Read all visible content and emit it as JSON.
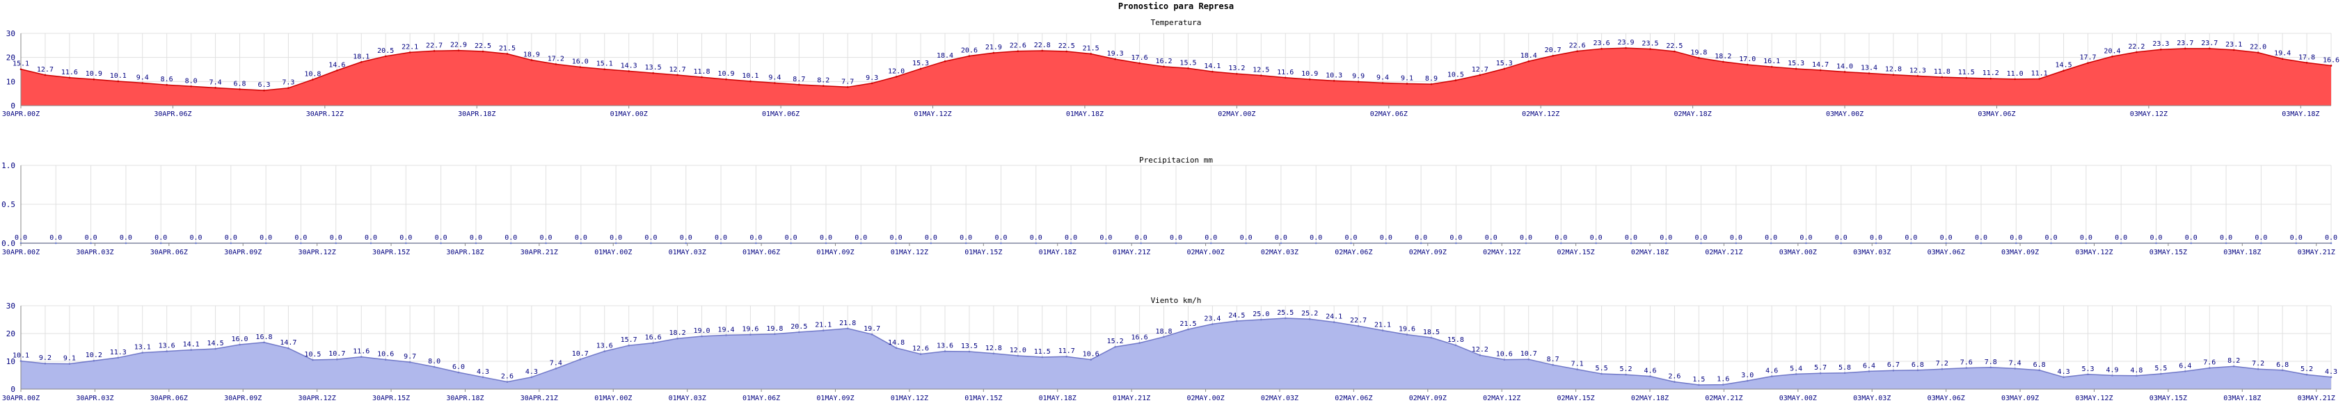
{
  "page_title": "Pronostico para Represa",
  "colors": {
    "temp_fill": "#ff5050",
    "temp_line": "#cc0000",
    "wind_fill": "#b0b8ec",
    "wind_line": "#7078c8",
    "precip_line": "#7080d0",
    "grid": "#e0e0e0",
    "axis": "#888888",
    "value_label": "#000080",
    "axis_label": "#000080"
  },
  "chart_data": [
    {
      "type": "area",
      "title": "Temperatura",
      "ylim": [
        0,
        30
      ],
      "yticks": [
        0,
        10,
        20,
        30
      ],
      "grid": true,
      "x_ticks": [
        "30APR.00Z",
        "30APR.06Z",
        "30APR.12Z",
        "30APR.18Z",
        "01MAY.00Z",
        "01MAY.06Z",
        "01MAY.12Z",
        "01MAY.18Z",
        "02MAY.00Z",
        "02MAY.06Z",
        "02MAY.12Z",
        "02MAY.18Z",
        "03MAY.00Z",
        "03MAY.06Z",
        "03MAY.12Z",
        "03MAY.18Z"
      ],
      "values": [
        15.1,
        12.7,
        11.6,
        10.9,
        10.1,
        9.4,
        8.6,
        8.0,
        7.4,
        6.8,
        6.3,
        7.3,
        10.8,
        14.6,
        18.1,
        20.5,
        22.1,
        22.7,
        22.9,
        22.5,
        21.5,
        18.9,
        17.2,
        16.0,
        15.1,
        14.3,
        13.5,
        12.7,
        11.8,
        10.9,
        10.1,
        9.4,
        8.7,
        8.2,
        7.7,
        9.3,
        12.0,
        15.3,
        18.4,
        20.6,
        21.9,
        22.6,
        22.8,
        22.5,
        21.5,
        19.3,
        17.6,
        16.2,
        15.5,
        14.1,
        13.2,
        12.5,
        11.6,
        10.9,
        10.3,
        9.9,
        9.4,
        9.1,
        8.9,
        10.5,
        12.7,
        15.3,
        18.4,
        20.7,
        22.6,
        23.6,
        23.9,
        23.5,
        22.5,
        19.8,
        18.2,
        17.0,
        16.1,
        15.3,
        14.7,
        14.0,
        13.4,
        12.8,
        12.3,
        11.8,
        11.5,
        11.2,
        11.0,
        11.1,
        14.5,
        17.7,
        20.4,
        22.2,
        23.3,
        23.7,
        23.7,
        23.1,
        22.0,
        19.4,
        17.8,
        16.6
      ]
    },
    {
      "type": "area",
      "title": "Precipitacion mm",
      "ylim": [
        0,
        1.0
      ],
      "yticks": [
        "0.0",
        "0.5",
        "1.0"
      ],
      "grid": true,
      "x_ticks": [
        "30APR.00Z",
        "30APR.03Z",
        "30APR.06Z",
        "30APR.09Z",
        "30APR.12Z",
        "30APR.15Z",
        "30APR.18Z",
        "30APR.21Z",
        "01MAY.00Z",
        "01MAY.03Z",
        "01MAY.06Z",
        "01MAY.09Z",
        "01MAY.12Z",
        "01MAY.15Z",
        "01MAY.18Z",
        "01MAY.21Z",
        "02MAY.00Z",
        "02MAY.03Z",
        "02MAY.06Z",
        "02MAY.09Z",
        "02MAY.12Z",
        "02MAY.15Z",
        "02MAY.18Z",
        "02MAY.21Z",
        "03MAY.00Z",
        "03MAY.03Z",
        "03MAY.06Z",
        "03MAY.09Z",
        "03MAY.12Z",
        "03MAY.15Z",
        "03MAY.18Z",
        "03MAY.21Z"
      ],
      "values": [
        0.0,
        0.0,
        0.0,
        0.0,
        0.0,
        0.0,
        0.0,
        0.0,
        0.0,
        0.0,
        0.0,
        0.0,
        0.0,
        0.0,
        0.0,
        0.0,
        0.0,
        0.0,
        0.0,
        0.0,
        0.0,
        0.0,
        0.0,
        0.0,
        0.0,
        0.0,
        0.0,
        0.0,
        0.0,
        0.0,
        0.0,
        0.0,
        0.0,
        0.0,
        0.0,
        0.0,
        0.0,
        0.0,
        0.0,
        0.0,
        0.0,
        0.0,
        0.0,
        0.0,
        0.0,
        0.0,
        0.0,
        0.0,
        0.0,
        0.0,
        0.0,
        0.0,
        0.0,
        0.0,
        0.0,
        0.0,
        0.0,
        0.0,
        0.0,
        0.0,
        0.0,
        0.0,
        0.0,
        0.0,
        0.0,
        0.0,
        0.0
      ]
    },
    {
      "type": "area",
      "title": "Viento km/h",
      "ylim": [
        0,
        30
      ],
      "yticks": [
        0,
        10,
        20,
        30
      ],
      "grid": true,
      "x_ticks": [
        "30APR.00Z",
        "30APR.03Z",
        "30APR.06Z",
        "30APR.09Z",
        "30APR.12Z",
        "30APR.15Z",
        "30APR.18Z",
        "30APR.21Z",
        "01MAY.00Z",
        "01MAY.03Z",
        "01MAY.06Z",
        "01MAY.09Z",
        "01MAY.12Z",
        "01MAY.15Z",
        "01MAY.18Z",
        "01MAY.21Z",
        "02MAY.00Z",
        "02MAY.03Z",
        "02MAY.06Z",
        "02MAY.09Z",
        "02MAY.12Z",
        "02MAY.15Z",
        "02MAY.18Z",
        "02MAY.21Z",
        "03MAY.00Z",
        "03MAY.03Z",
        "03MAY.06Z",
        "03MAY.09Z",
        "03MAY.12Z",
        "03MAY.15Z",
        "03MAY.18Z",
        "03MAY.21Z"
      ],
      "values": [
        10.1,
        9.2,
        9.1,
        10.2,
        11.3,
        13.1,
        13.6,
        14.1,
        14.5,
        16.0,
        16.8,
        14.7,
        10.5,
        10.7,
        11.6,
        10.6,
        9.7,
        8.0,
        6.0,
        4.3,
        2.6,
        4.3,
        7.4,
        10.7,
        13.6,
        15.7,
        16.6,
        18.2,
        19.0,
        19.4,
        19.6,
        19.8,
        20.5,
        21.1,
        21.8,
        19.7,
        14.8,
        12.6,
        13.6,
        13.5,
        12.8,
        12.0,
        11.5,
        11.7,
        10.6,
        15.2,
        16.6,
        18.8,
        21.5,
        23.4,
        24.5,
        25.0,
        25.5,
        25.2,
        24.1,
        22.7,
        21.1,
        19.6,
        18.5,
        15.8,
        12.2,
        10.6,
        10.7,
        8.7,
        7.1,
        5.5,
        5.2,
        4.6,
        2.6,
        1.5,
        1.6,
        3.0,
        4.6,
        5.4,
        5.7,
        5.8,
        6.4,
        6.7,
        6.8,
        7.2,
        7.6,
        7.8,
        7.4,
        6.8,
        4.3,
        5.3,
        4.9,
        4.8,
        5.5,
        6.4,
        7.6,
        8.2,
        7.2,
        6.8,
        5.2,
        4.3
      ]
    }
  ]
}
